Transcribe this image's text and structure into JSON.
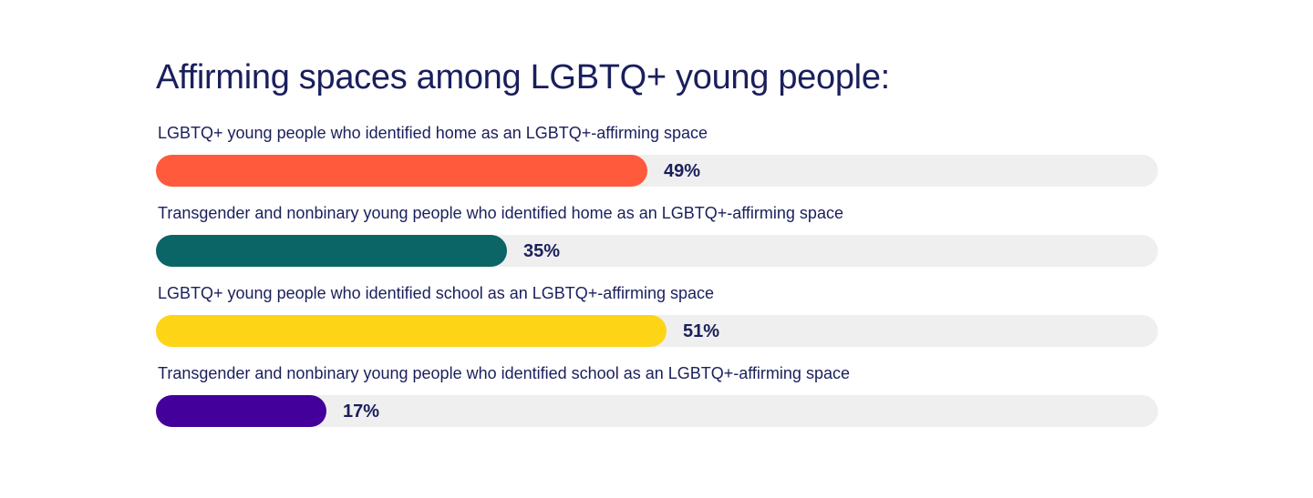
{
  "chart_data": {
    "type": "bar",
    "orientation": "horizontal",
    "title": "Affirming spaces among LGBTQ+ young people:",
    "categories": [
      "LGBTQ+ young people who identified home as an LGBTQ+-affirming space",
      "Transgender and nonbinary young people who identified home as an LGBTQ+-affirming space",
      "LGBTQ+ young people who identified school as an LGBTQ+-affirming space",
      "Transgender and nonbinary young people who identified school as an LGBTQ+-affirming space"
    ],
    "values": [
      49,
      35,
      51,
      17
    ],
    "value_labels": [
      "49%",
      "35%",
      "51%",
      "17%"
    ],
    "colors": [
      "#ff5a3c",
      "#0b6466",
      "#fed417",
      "#44009b"
    ],
    "track_color": "#efefef",
    "xlim": [
      0,
      100
    ],
    "grid": false,
    "legend": "none"
  }
}
